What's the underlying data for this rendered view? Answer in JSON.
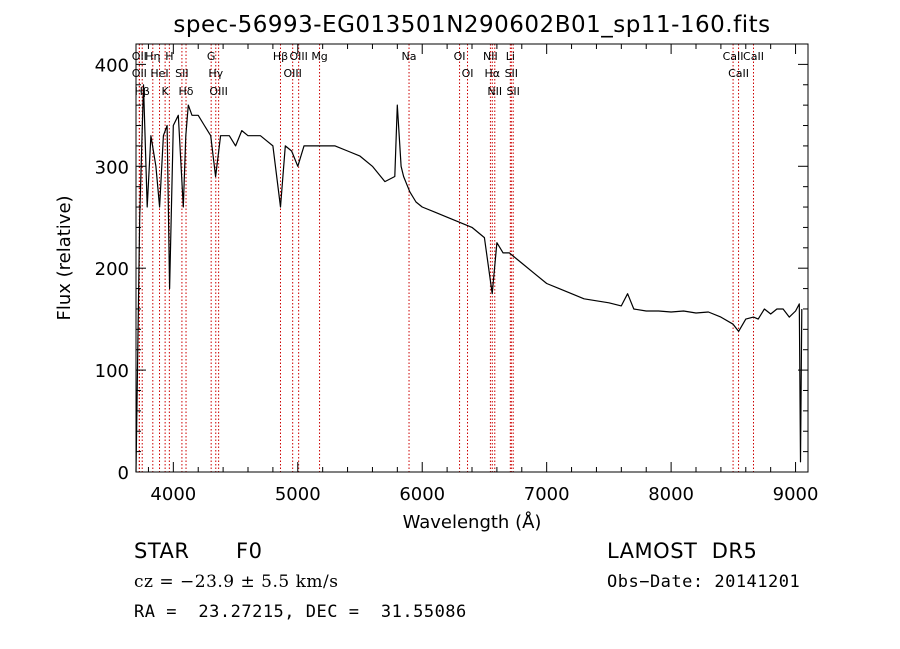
{
  "chart_data": {
    "type": "line",
    "title": "spec-56993-EG013501N290602B01_sp11-160.fits",
    "xlabel": "Wavelength (Å)",
    "ylabel": "Flux (relative)",
    "xlim": [
      3700,
      9100
    ],
    "ylim": [
      0,
      420
    ],
    "x_ticks": [
      4000,
      5000,
      6000,
      7000,
      8000,
      9000
    ],
    "y_ticks": [
      0,
      100,
      200,
      300,
      400
    ],
    "grid": false,
    "series": [
      {
        "color": "#000000",
        "x": [
          3700,
          3730,
          3760,
          3790,
          3820,
          3860,
          3890,
          3920,
          3950,
          3970,
          4000,
          4040,
          4080,
          4100,
          4120,
          4150,
          4200,
          4250,
          4300,
          4340,
          4380,
          4450,
          4500,
          4550,
          4600,
          4650,
          4700,
          4750,
          4800,
          4861,
          4900,
          4950,
          5000,
          5050,
          5100,
          5150,
          5200,
          5300,
          5400,
          5500,
          5600,
          5700,
          5780,
          5800,
          5830,
          5850,
          5900,
          5950,
          6000,
          6100,
          6200,
          6300,
          6400,
          6500,
          6562,
          6600,
          6650,
          6700,
          6800,
          6900,
          7000,
          7100,
          7200,
          7300,
          7400,
          7500,
          7600,
          7650,
          7700,
          7800,
          7900,
          8000,
          8100,
          8200,
          8300,
          8400,
          8498,
          8542,
          8600,
          8662,
          8700,
          8750,
          8800,
          8850,
          8900,
          8950,
          9000,
          9030,
          9040,
          9050
        ],
        "y": [
          0,
          250,
          380,
          260,
          330,
          300,
          260,
          330,
          340,
          180,
          340,
          350,
          260,
          330,
          360,
          350,
          350,
          340,
          330,
          290,
          330,
          330,
          320,
          335,
          330,
          330,
          330,
          325,
          320,
          260,
          320,
          315,
          300,
          320,
          320,
          320,
          320,
          320,
          315,
          310,
          300,
          285,
          290,
          360,
          300,
          290,
          275,
          265,
          260,
          255,
          250,
          245,
          240,
          230,
          175,
          225,
          215,
          215,
          205,
          195,
          185,
          180,
          175,
          170,
          168,
          166,
          163,
          175,
          160,
          158,
          158,
          157,
          158,
          156,
          157,
          152,
          145,
          138,
          150,
          152,
          150,
          160,
          155,
          160,
          160,
          152,
          158,
          165,
          10,
          160
        ]
      }
    ],
    "lines": [
      {
        "label": "Hβ",
        "wave": 3750
      },
      {
        "label": "OII",
        "wave": 3727
      },
      {
        "label": "OII",
        "wave": 3727
      },
      {
        "label": "Hη",
        "wave": 3835
      },
      {
        "label": "HeI",
        "wave": 3889
      },
      {
        "label": "K",
        "wave": 3934
      },
      {
        "label": "H",
        "wave": 3968
      },
      {
        "label": "SII",
        "wave": 4069
      },
      {
        "label": "Hδ",
        "wave": 4102
      },
      {
        "label": "OIII",
        "wave": 4364
      },
      {
        "label": "Hγ",
        "wave": 4341
      },
      {
        "label": "G",
        "wave": 4304
      },
      {
        "label": "Hβ",
        "wave": 4861
      },
      {
        "label": "OIII",
        "wave": 4959
      },
      {
        "label": "OIII",
        "wave": 5007
      },
      {
        "label": "Mg",
        "wave": 5175
      },
      {
        "label": "Na",
        "wave": 5894
      },
      {
        "label": "OI",
        "wave": 6300
      },
      {
        "label": "OI",
        "wave": 6364
      },
      {
        "label": "Hα",
        "wave": 6563
      },
      {
        "label": "NII",
        "wave": 6548
      },
      {
        "label": "NII",
        "wave": 6583
      },
      {
        "label": "SII",
        "wave": 6716
      },
      {
        "label": "SII",
        "wave": 6731
      },
      {
        "label": "Li",
        "wave": 6708
      },
      {
        "label": "CaII",
        "wave": 8498
      },
      {
        "label": "CaII",
        "wave": 8542
      },
      {
        "label": "CaII",
        "wave": 8662
      }
    ],
    "line_color": "#cc0000"
  },
  "info": {
    "object_class": "STAR",
    "subclass": "F0",
    "survey": "LAMOST  DR5",
    "cz": "cz = −23.9 ± 5.5 km/s",
    "obs_date": "Obs−Date: 20141201",
    "coords": "RA =  23.27215, DEC =  31.55086"
  }
}
